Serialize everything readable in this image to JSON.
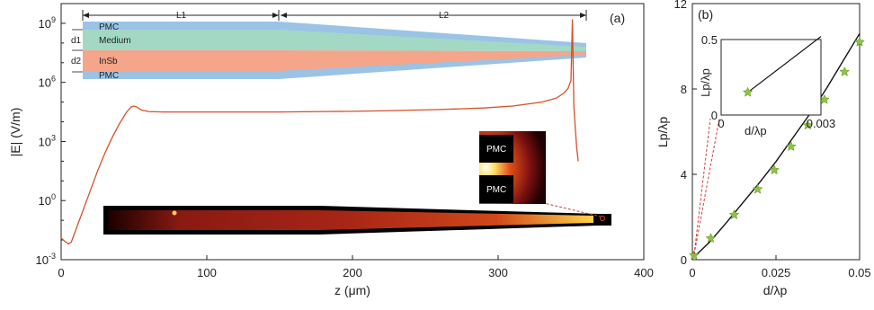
{
  "chart_data": [
    {
      "type": "line",
      "panel_label": "(a)",
      "xlabel": "z (μm)",
      "ylabel": "|E| (V/m)",
      "xlim": [
        0,
        400
      ],
      "ylim_log10": [
        -3,
        10
      ],
      "yscale": "log",
      "x_ticks": [
        "0",
        "100",
        "200",
        "300",
        "400"
      ],
      "y_ticks": [
        {
          "base": "10",
          "exp": "9"
        },
        {
          "base": "10",
          "exp": "6"
        },
        {
          "base": "10",
          "exp": "3"
        },
        {
          "base": "10",
          "exp": "0"
        },
        {
          "base": "10",
          "exp": "-3"
        }
      ],
      "series": [
        {
          "color": "#d4502a",
          "x": [
            0,
            3,
            5,
            7,
            10,
            15,
            20,
            25,
            30,
            35,
            40,
            45,
            48,
            50,
            52,
            55,
            60,
            70,
            80,
            100,
            120,
            150,
            180,
            200,
            230,
            260,
            290,
            310,
            330,
            340,
            345,
            348,
            350,
            351,
            352,
            353,
            354,
            355
          ],
          "y": [
            -1.9,
            -2.1,
            -2.2,
            -2.1,
            -1.5,
            -0.5,
            0.5,
            1.5,
            2.4,
            3.2,
            3.9,
            4.5,
            4.75,
            4.8,
            4.75,
            4.6,
            4.52,
            4.5,
            4.5,
            4.5,
            4.5,
            4.5,
            4.52,
            4.53,
            4.57,
            4.62,
            4.7,
            4.8,
            5.0,
            5.2,
            5.45,
            5.7,
            6.1,
            9.2,
            4.8,
            3.6,
            2.6,
            2.0
          ]
        }
      ],
      "schematic": {
        "layers": [
          "PMC",
          "Medium",
          "InSb",
          "PMC"
        ],
        "dimensions": [
          "L1",
          "L2",
          "d1",
          "d2"
        ]
      },
      "inset_labels": [
        "PMC",
        "PMC"
      ]
    },
    {
      "type": "line",
      "panel_label": "(b)",
      "xlabel": "d/λp",
      "ylabel": "Lp/λp",
      "xlim": [
        0,
        0.05
      ],
      "ylim": [
        0,
        12
      ],
      "x_ticks": [
        "0",
        "0.025",
        "0.05"
      ],
      "y_ticks": [
        "0",
        "4",
        "8",
        "12"
      ],
      "curve": {
        "x": [
          0,
          0.005,
          0.01,
          0.015,
          0.02,
          0.025,
          0.03,
          0.035,
          0.04,
          0.045,
          0.05
        ],
        "y": [
          0.05,
          0.8,
          1.7,
          2.65,
          3.6,
          4.6,
          5.7,
          6.8,
          8.0,
          9.3,
          10.6
        ]
      },
      "markers": {
        "x": [
          0.0005,
          0.0055,
          0.0125,
          0.0195,
          0.0245,
          0.0295,
          0.0345,
          0.0395,
          0.0455,
          0.05
        ],
        "y": [
          0.2,
          1.0,
          2.1,
          3.3,
          4.2,
          5.3,
          6.3,
          7.5,
          8.8,
          10.2
        ],
        "color": "#8cc63f"
      },
      "inset": {
        "xlabel": "d/λp",
        "ylabel": "Lp/λp",
        "xlim": [
          0,
          0.003
        ],
        "ylim": [
          0,
          0.5
        ],
        "x_ticks": [
          "0",
          "0.003"
        ],
        "y_ticks": [
          "0",
          "0.5"
        ],
        "line": {
          "x": [
            0.0008,
            0.003
          ],
          "y": [
            0.15,
            0.52
          ]
        },
        "marker": {
          "x": 0.0008,
          "y": 0.15
        }
      }
    }
  ]
}
